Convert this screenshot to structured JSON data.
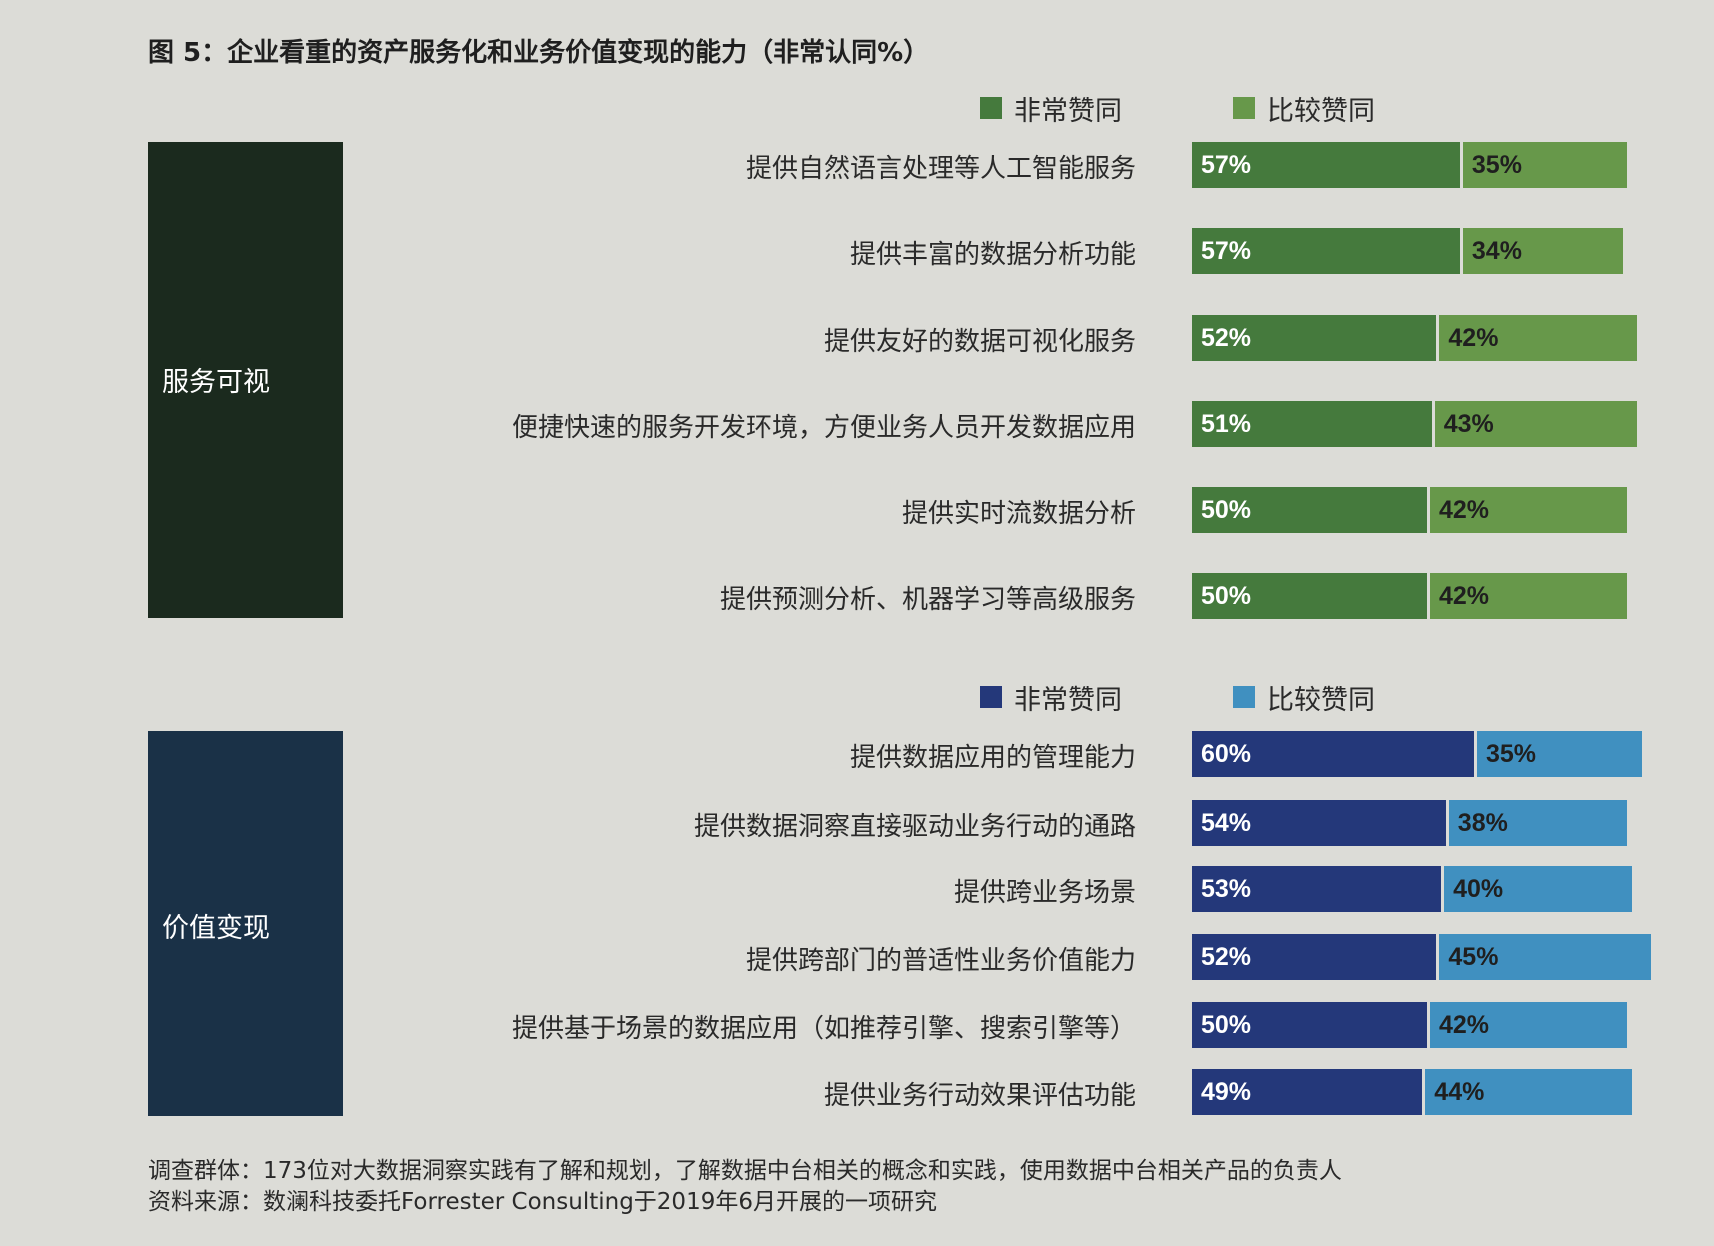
{
  "title": "图 5：企业看重的资产服务化和业务价值变现的能力（非常认同%）",
  "colors": {
    "background": "#dcdcd7",
    "panel1": "#1b2a1e",
    "panel2": "#1a3147",
    "green_strong": "#457a3d",
    "green_mid": "#67984a",
    "blue_strong": "#24387a",
    "blue_mid": "#4090c0",
    "strong_label_text": "#ffffff",
    "mid_label_text": "#1f1f1f"
  },
  "chart_data": [
    {
      "type": "bar",
      "orientation": "horizontal",
      "stacked": true,
      "group_label": "服务可视",
      "legend": [
        "非常赞同",
        "比较赞同"
      ],
      "categories": [
        "提供自然语言处理等人工智能服务",
        "提供丰富的数据分析功能",
        "提供友好的数据可视化服务",
        "便捷快速的服务开发环境，方便业务人员开发数据应用",
        "提供实时流数据分析",
        "提供预测分析、机器学习等高级服务"
      ],
      "series": [
        {
          "name": "非常赞同",
          "values": [
            57,
            57,
            52,
            51,
            50,
            50
          ],
          "color": "#457a3d"
        },
        {
          "name": "比较赞同",
          "values": [
            35,
            34,
            42,
            43,
            42,
            42
          ],
          "color": "#67984a"
        }
      ]
    },
    {
      "type": "bar",
      "orientation": "horizontal",
      "stacked": true,
      "group_label": "价值变现",
      "legend": [
        "非常赞同",
        "比较赞同"
      ],
      "categories": [
        "提供数据应用的管理能力",
        "提供数据洞察直接驱动业务行动的通路",
        "提供跨业务场景",
        "提供跨部门的普适性业务价值能力",
        "提供基于场景的数据应用（如推荐引擎、搜索引擎等）",
        "提供业务行动效果评估功能"
      ],
      "series": [
        {
          "name": "非常赞同",
          "values": [
            60,
            54,
            53,
            52,
            50,
            49
          ],
          "color": "#24387a"
        },
        {
          "name": "比较赞同",
          "values": [
            35,
            38,
            40,
            45,
            42,
            44
          ],
          "color": "#4090c0"
        }
      ]
    }
  ],
  "footnotes": {
    "line1": "调查群体：173位对大数据洞察实践有了解和规划，了解数据中台相关的概念和实践，使用数据中台相关产品的负责人",
    "line2": "资料来源：数澜科技委托Forrester Consulting于2019年6月开展的一项研究"
  }
}
